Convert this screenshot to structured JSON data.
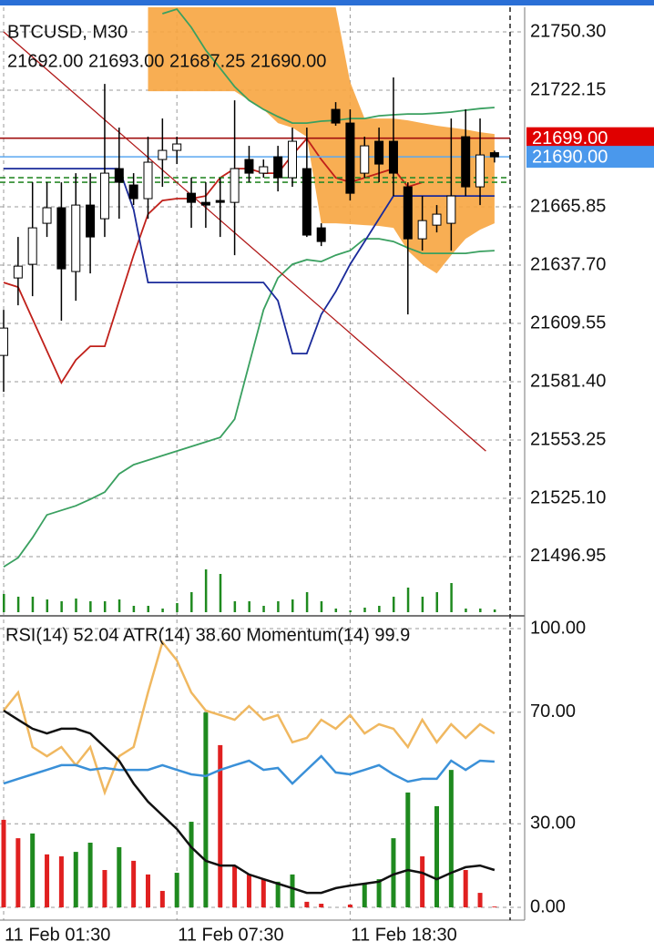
{
  "chart_data": [
    {
      "type": "candlestick",
      "title": "BTCUSD, M30",
      "subtitle": "21692.00 21693.00 21687.25 21690.00",
      "categories": [
        "11 Feb 01:30",
        null,
        null,
        null,
        null,
        null,
        null,
        null,
        null,
        null,
        null,
        null,
        "11 Feb 07:30",
        null,
        null,
        null,
        null,
        null,
        null,
        null,
        null,
        null,
        null,
        null,
        "11 Feb 18:30",
        null,
        null,
        null,
        null,
        null,
        null,
        null,
        null,
        null,
        null
      ],
      "ohlc": [
        [
          21594.1,
          21616.1,
          21576.5,
          21607.3
        ],
        [
          21631.5,
          21651.3,
          21618.3,
          21637.2
        ],
        [
          21638.1,
          21677.7,
          21622.7,
          21655.7
        ],
        [
          21657.9,
          21677.7,
          21651.3,
          21665.4
        ],
        [
          21665.4,
          21677.7,
          21610.8,
          21635.9
        ],
        [
          21634.6,
          21682.1,
          21620.5,
          21666.7
        ],
        [
          21666.7,
          21682.1,
          21633.7,
          21651.3
        ],
        [
          21660.1,
          21725.2,
          21651.3,
          21682.1
        ],
        [
          21684.3,
          21704.1,
          21660.1,
          21677.7
        ],
        [
          21676.4,
          21682.1,
          21666.7,
          21669.8
        ],
        [
          21669.8,
          21699.7,
          21660.1,
          21687.4
        ],
        [
          21688.7,
          21708.5,
          21675.5,
          21693.1
        ],
        [
          21693.1,
          21699.7,
          21686.5,
          21696.2
        ],
        [
          21672.4,
          21679.9,
          21655.7,
          21668.0
        ],
        [
          21668.0,
          21677.7,
          21655.7,
          21666.7
        ],
        [
          21668.9,
          21679.9,
          21651.3,
          21668.0
        ],
        [
          21668.0,
          21717.3,
          21642.5,
          21684.3
        ],
        [
          21688.7,
          21695.3,
          21677.7,
          21682.1
        ],
        [
          21682.1,
          21688.7,
          21679.9,
          21685.2
        ],
        [
          21690.0,
          21695.3,
          21673.3,
          21679.9
        ],
        [
          21679.9,
          21704.1,
          21675.5,
          21697.5
        ],
        [
          21684.3,
          21704.1,
          21651.3,
          21652.2
        ],
        [
          21655.7,
          21657.9,
          21646.9,
          21649.1
        ],
        [
          21712.9,
          21716.4,
          21705.0,
          21706.3
        ],
        [
          21706.3,
          21712.9,
          21668.9,
          21672.4
        ],
        [
          21682.1,
          21699.7,
          21679.9,
          21695.3
        ],
        [
          21697.5,
          21704.1,
          21677.7,
          21686.5
        ],
        [
          21697.5,
          21728.3,
          21671.1,
          21682.1
        ],
        [
          21675.5,
          21677.7,
          21613.9,
          21650.4
        ],
        [
          21650.4,
          21671.1,
          21644.7,
          21659.2
        ],
        [
          21657.0,
          21666.7,
          21653.5,
          21662.3
        ],
        [
          21657.9,
          21708.5,
          21644.7,
          21671.1
        ],
        [
          21699.7,
          21712.9,
          21671.1,
          21675.5
        ],
        [
          21675.5,
          21708.5,
          21666.7,
          21690.9
        ],
        [
          21692.0,
          21693.0,
          21687.25,
          21690.0
        ]
      ],
      "up_color": "#ffffff",
      "down_color": "#000000",
      "ylim": [
        21470.1,
        21762.2
      ],
      "yticks": [
        {
          "value": 21750.3,
          "label": "21750.30"
        },
        {
          "value": 21722.15,
          "label": "21722.15"
        },
        {
          "value": 21665.85,
          "label": "21665.85"
        },
        {
          "value": 21637.7,
          "label": "21637.70"
        },
        {
          "value": 21609.55,
          "label": "21609.55"
        },
        {
          "value": 21581.4,
          "label": "21581.40"
        },
        {
          "value": 21553.25,
          "label": "21553.25"
        },
        {
          "value": 21525.1,
          "label": "21525.10"
        },
        {
          "value": 21496.95,
          "label": "21496.95"
        }
      ],
      "grid": true,
      "cloud": {
        "color": "#f7a540",
        "top": [
          null,
          null,
          null,
          null,
          null,
          null,
          null,
          null,
          null,
          null,
          21762.2,
          21762.2,
          21762.2,
          21762.2,
          21762.2,
          21762.2,
          21762.2,
          21762.2,
          21762.2,
          21762.2,
          21762.2,
          21762.2,
          21762.2,
          21762.2,
          21726.1,
          21708.5,
          21708.5,
          21708.5,
          21707.6,
          21706.3,
          21705.0,
          21704.1,
          21703.2,
          21701.9,
          21701.0
        ],
        "bottom": [
          null,
          null,
          null,
          null,
          null,
          null,
          null,
          null,
          null,
          null,
          21721.7,
          21721.7,
          21721.7,
          21721.7,
          21721.7,
          21721.7,
          21721.7,
          21717.3,
          21712.9,
          21706.3,
          21704.1,
          21699.7,
          21657.9,
          21657.9,
          21657.5,
          21657.0,
          21656.6,
          21655.7,
          21644.7,
          21638.1,
          21633.7,
          21642.5,
          21650.4,
          21654.8,
          21657.9
        ]
      },
      "series": [
        {
          "color": "#3aa060",
          "values": [
            21492.0,
            21496.4,
            21506.1,
            21517.1,
            21519.3,
            21521.5,
            21524.6,
            21528.1,
            21536.9,
            21541.3,
            21543.5,
            21545.7,
            21547.9,
            21550.1,
            21552.3,
            21554.5,
            21563.3,
            21589.7,
            21616.1,
            21631.5,
            21638.1,
            21640.3,
            21639.4,
            21642.5,
            21644.7,
            21650.4,
            21650.4,
            21649.1,
            21646.0,
            21643.4,
            21643.4,
            21643.4,
            21643.4,
            21644.3,
            21644.7
          ]
        },
        {
          "color": "#3aa060",
          "values": [
            null,
            null,
            null,
            null,
            null,
            null,
            null,
            null,
            null,
            null,
            null,
            21759.1,
            21761.3,
            21752.5,
            21741.5,
            21732.7,
            21723.9,
            21717.3,
            21712.9,
            21709.4,
            21706.3,
            21706.3,
            21707.2,
            21707.6,
            21708.5,
            21708.5,
            21709.8,
            21710.3,
            21710.7,
            21710.7,
            21711.1,
            21711.6,
            21712.5,
            21713.3,
            21713.8
          ]
        },
        {
          "color": "#c0201a",
          "values": [
            21629.3,
            21627.1,
            21611.7,
            21596.3,
            21580.9,
            21591.9,
            21598.5,
            21598.5,
            21620.5,
            21642.5,
            21662.3,
            21668.9,
            21669.8,
            21669.8,
            21671.1,
            21679.9,
            21684.3,
            21684.3,
            21682.1,
            21682.1,
            21690.9,
            21698.8,
            21688.7,
            21679.9,
            21677.7,
            21679.9,
            21682.1,
            21684.3,
            21675.5,
            21677.7,
            null,
            null,
            null,
            null,
            null
          ]
        },
        {
          "color": "#1a2a9a",
          "values": [
            21684.3,
            21684.3,
            21684.3,
            21684.3,
            21684.3,
            21684.3,
            21684.3,
            21684.3,
            21684.3,
            21664.5,
            21629.3,
            21629.3,
            21629.3,
            21629.3,
            21629.3,
            21629.3,
            21629.3,
            21629.3,
            21629.3,
            21620.5,
            21595.0,
            21595.0,
            21613.9,
            21624.9,
            21638.1,
            21649.1,
            21660.1,
            21671.1,
            21671.1,
            21671.1,
            21671.1,
            21671.1,
            21671.1,
            21671.1,
            21671.1
          ]
        }
      ],
      "trendline": {
        "color": "#b01818",
        "x": [
          0,
          33.4
        ],
        "values": [
          21750.3,
          21547.9
        ]
      },
      "levels": [
        {
          "value": 21699,
          "color": "#a01010",
          "dashed": false
        },
        {
          "value": 21690,
          "color": "#5aa8f0",
          "dashed": false
        },
        {
          "value": 21679.9,
          "color": "#2a8a2a",
          "dashed": true
        },
        {
          "value": 21677.7,
          "color": "#2a8a2a",
          "dashed": true
        }
      ],
      "price_marks": [
        {
          "value": 21699,
          "label": "21699.00",
          "color": "#e00000"
        },
        {
          "value": 21690,
          "label": "21690.00",
          "color": "#4a98ec"
        }
      ],
      "volume": {
        "color": "#1f8a1f",
        "lim": [
          0,
          100
        ],
        "values": [
          20,
          17,
          17,
          14,
          12,
          15,
          12,
          12,
          14,
          7,
          7,
          4,
          10,
          22,
          47,
          42,
          12,
          12,
          7,
          12,
          14,
          22,
          12,
          4,
          2,
          5,
          7,
          17,
          27,
          17,
          22,
          32,
          4,
          4,
          3
        ]
      }
    },
    {
      "type": "indicator",
      "legend": "RSI(14) 52.04 ATR(14) 38.60 Momentum(14) 99.9",
      "ylim": [
        0,
        100
      ],
      "yticks": [
        {
          "value": 100,
          "label": "100.00"
        },
        {
          "value": 70,
          "label": "70.00"
        },
        {
          "value": 30,
          "label": "30.00"
        },
        {
          "value": 0,
          "label": "0.00"
        }
      ],
      "series": [
        {
          "color": "#f0b860",
          "values": [
            70.6,
            77.1,
            57.5,
            54.2,
            57.5,
            51.0,
            57.5,
            41.2,
            54.2,
            57.5,
            77.1,
            95.1,
            88.6,
            77.1,
            70.6,
            69.0,
            67.3,
            72.2,
            67.3,
            69.0,
            59.2,
            60.8,
            67.3,
            64.1,
            69.0,
            62.4,
            65.7,
            64.1,
            57.5,
            67.3,
            59.2,
            65.7,
            60.8,
            65.7,
            62.4
          ]
        },
        {
          "color": "#3a90d8",
          "values": [
            44.4,
            46.1,
            47.7,
            49.3,
            51.0,
            51.0,
            49.3,
            50.0,
            49.3,
            49.3,
            49.3,
            51.0,
            49.3,
            47.7,
            47.1,
            49.3,
            51.0,
            52.6,
            49.3,
            50.0,
            44.4,
            49.3,
            54.2,
            48.4,
            47.7,
            49.3,
            51.0,
            47.7,
            45.1,
            46.1,
            46.1,
            52.6,
            49.3,
            52.6,
            52.3
          ]
        },
        {
          "color": "#111111",
          "values": [
            70.6,
            67.3,
            64.1,
            62.4,
            64.1,
            64.1,
            62.4,
            57.5,
            52.6,
            44.4,
            37.9,
            33.0,
            28.1,
            21.6,
            16.7,
            15.0,
            15.0,
            11.8,
            10.1,
            8.5,
            6.9,
            5.2,
            5.2,
            6.9,
            7.8,
            8.5,
            9.2,
            11.8,
            13.4,
            12.4,
            10.1,
            12.4,
            14.4,
            15.0,
            13.4
          ]
        }
      ],
      "histogram": {
        "values": [
          31.4,
          24.8,
          26.5,
          19.0,
          18.3,
          19.9,
          23.2,
          13.4,
          21.6,
          16.7,
          11.8,
          5.9,
          12.4,
          30.7,
          69.9,
          58.2,
          15.0,
          11.8,
          10.1,
          9.2,
          11.8,
          2.0,
          1.3,
          0,
          1.0,
          8.5,
          10.1,
          24.8,
          41.2,
          18.3,
          36.3,
          49.3,
          13.4,
          5.2,
          0.3
        ],
        "colors": [
          "#e02020",
          "#e02020",
          "#1f8a1f",
          "#e02020",
          "#e02020",
          "#1f8a1f",
          "#1f8a1f",
          "#e02020",
          "#1f8a1f",
          "#e02020",
          "#e02020",
          "#e02020",
          "#1f8a1f",
          "#1f8a1f",
          "#1f8a1f",
          "#e02020",
          "#e02020",
          "#e02020",
          "#e02020",
          "#1f8a1f",
          "#1f8a1f",
          "#e02020",
          "#e02020",
          "#e02020",
          "#e02020",
          "#1f8a1f",
          "#1f8a1f",
          "#1f8a1f",
          "#1f8a1f",
          "#e02020",
          "#1f8a1f",
          "#1f8a1f",
          "#e02020",
          "#e02020",
          "#e02020"
        ]
      }
    }
  ]
}
